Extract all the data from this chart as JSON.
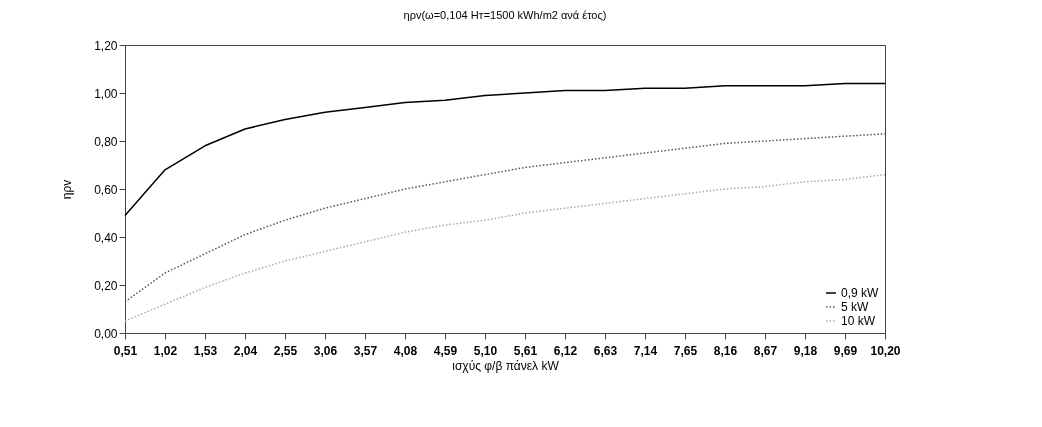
{
  "chart_data": {
    "type": "line",
    "title": "ηρv(ω=0,104 Hт=1500 kWh/m2 ανά έτος)",
    "xlabel": "ισχύς φ/β πάνελ kW",
    "ylabel": "ηρv",
    "categories": [
      "0,51",
      "1,02",
      "1,53",
      "2,04",
      "2,55",
      "3,06",
      "3,57",
      "4,08",
      "4,59",
      "5,10",
      "5,61",
      "6,12",
      "6,63",
      "7,14",
      "7,65",
      "8,16",
      "8,67",
      "9,18",
      "9,69",
      "10,20"
    ],
    "series": [
      {
        "name": "0,9 kW",
        "color": "#000000",
        "line_style": "solid",
        "values": [
          0.49,
          0.68,
          0.78,
          0.85,
          0.89,
          0.92,
          0.94,
          0.96,
          0.97,
          0.99,
          1.0,
          1.01,
          1.01,
          1.02,
          1.02,
          1.03,
          1.03,
          1.03,
          1.04,
          1.04
        ]
      },
      {
        "name": "5 kW",
        "color": "#555555",
        "line_style": "dotted",
        "values": [
          0.13,
          0.25,
          0.33,
          0.41,
          0.47,
          0.52,
          0.56,
          0.6,
          0.63,
          0.66,
          0.69,
          0.71,
          0.73,
          0.75,
          0.77,
          0.79,
          0.8,
          0.81,
          0.82,
          0.83
        ]
      },
      {
        "name": "10 kW",
        "color": "#aaaaaa",
        "line_style": "dotted",
        "values": [
          0.05,
          0.12,
          0.19,
          0.25,
          0.3,
          0.34,
          0.38,
          0.42,
          0.45,
          0.47,
          0.5,
          0.52,
          0.54,
          0.56,
          0.58,
          0.6,
          0.61,
          0.63,
          0.64,
          0.66
        ]
      }
    ],
    "ylim": [
      0,
      1.2
    ],
    "yticks": [
      {
        "value": 0,
        "label": "0,00"
      },
      {
        "value": 0.2,
        "label": "0,20"
      },
      {
        "value": 0.4,
        "label": "0,40"
      },
      {
        "value": 0.6,
        "label": "0,60"
      },
      {
        "value": 0.8,
        "label": "0,80"
      },
      {
        "value": 1.0,
        "label": "1,00"
      },
      {
        "value": 1.2,
        "label": "1,20"
      }
    ],
    "grid": false,
    "legend": "bottom right"
  }
}
